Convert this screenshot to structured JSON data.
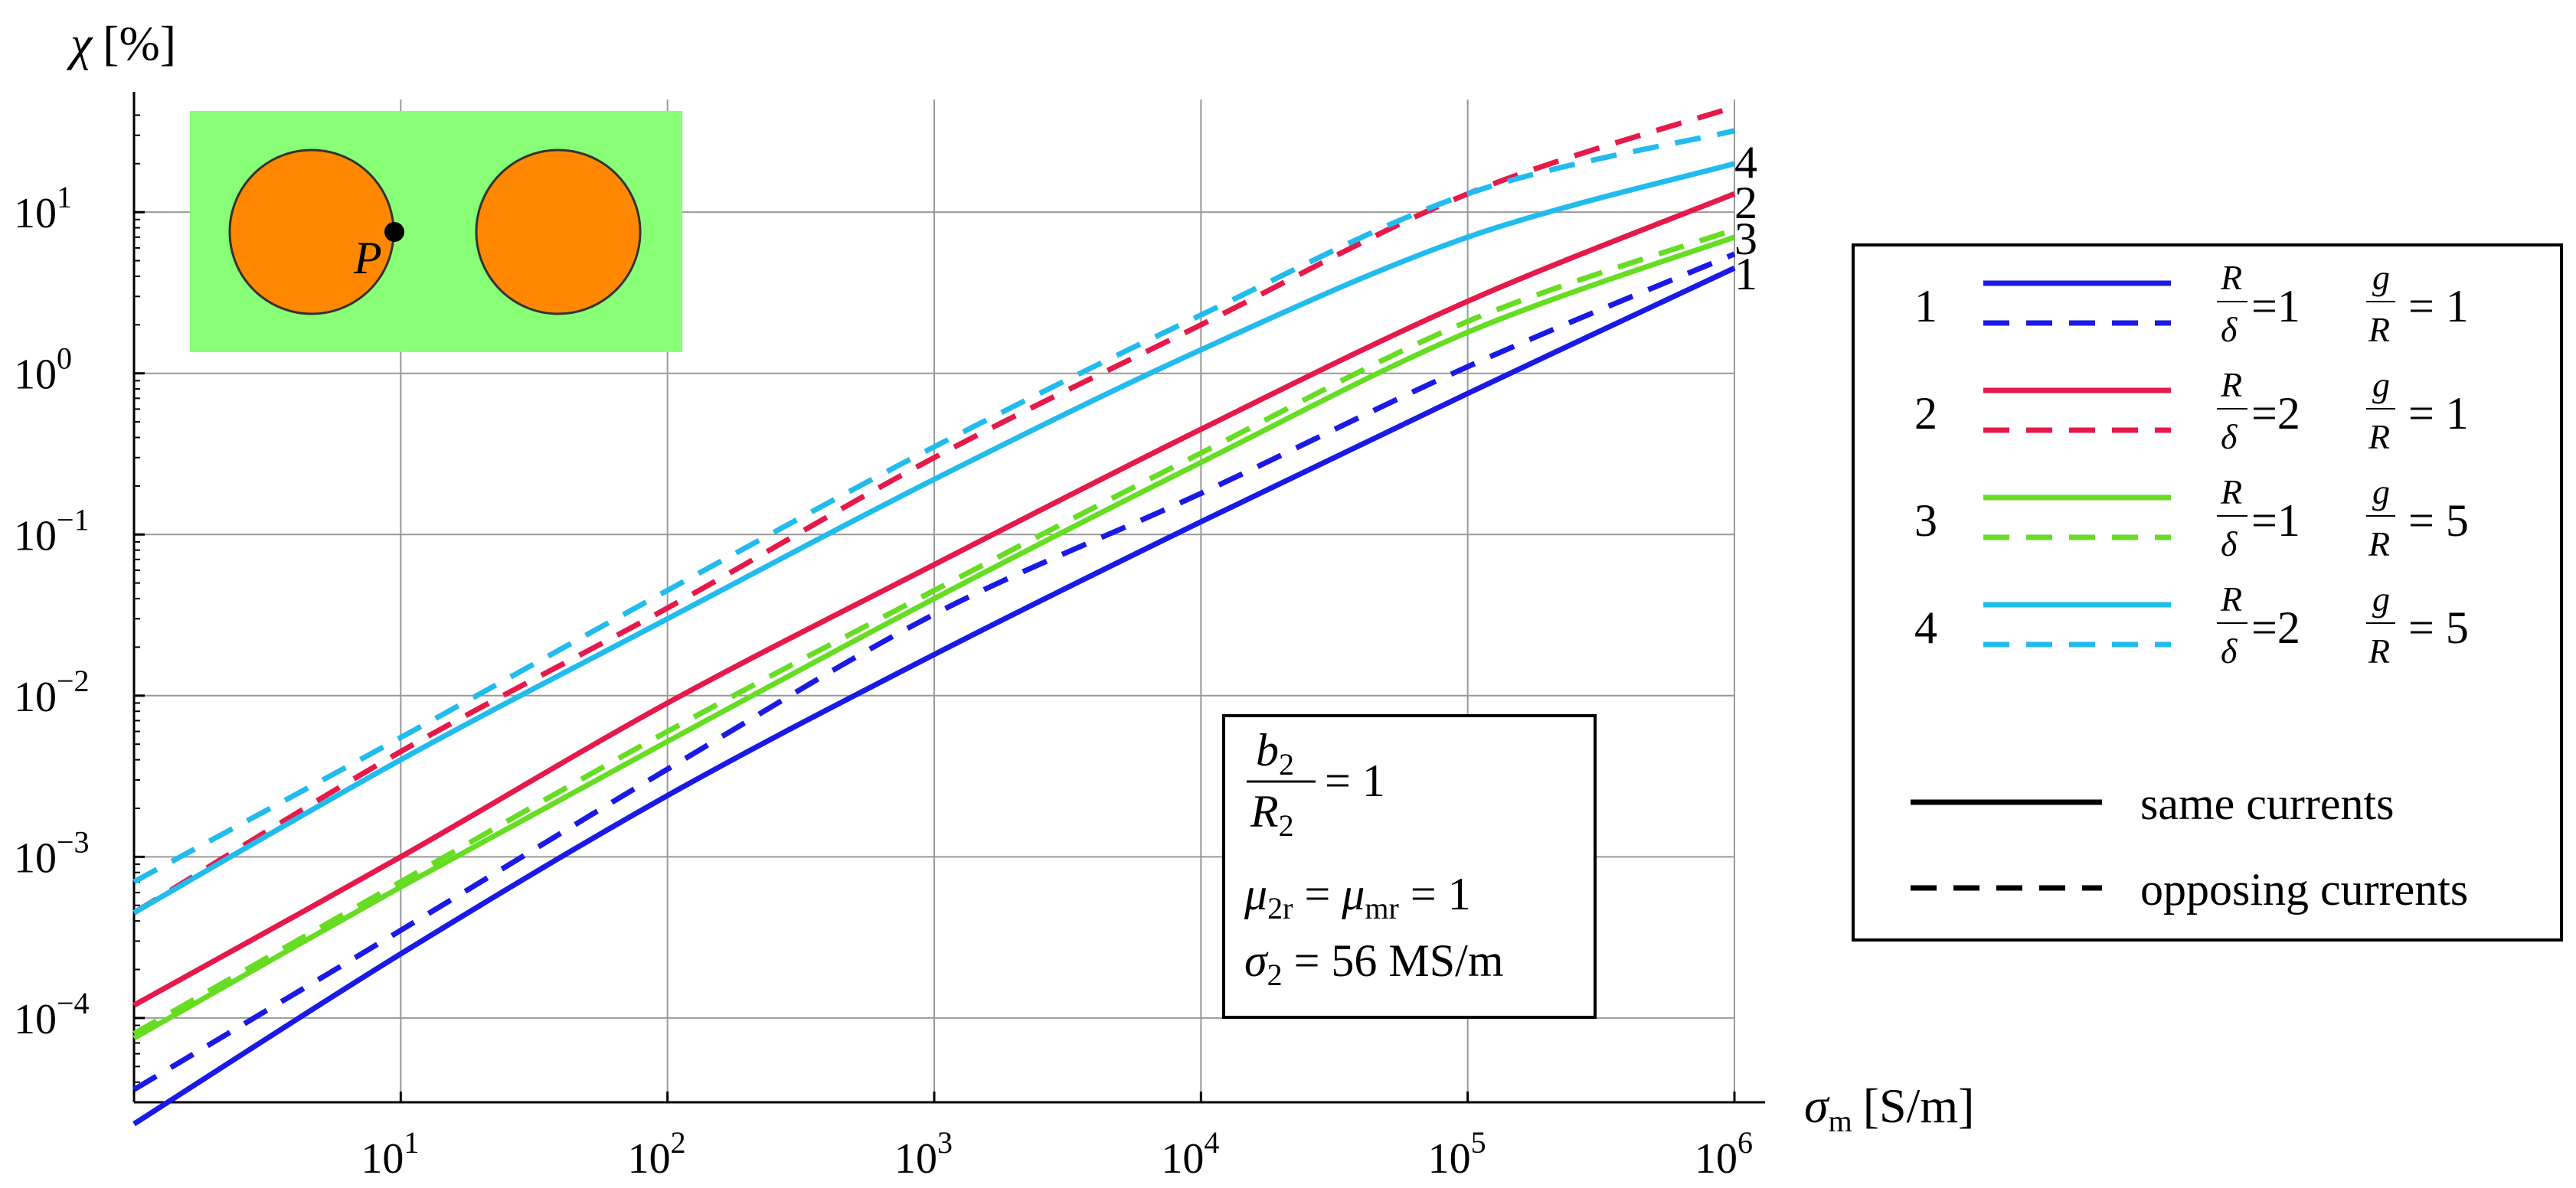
{
  "chart_data": {
    "type": "line",
    "xscale": "log",
    "yscale": "log",
    "x": [
      1,
      10,
      100,
      1000,
      10000,
      100000,
      1000000
    ],
    "xlim": [
      1,
      1000000
    ],
    "ylim": [
      3e-05,
      50
    ],
    "grid": true,
    "x_ticks": [
      10,
      100,
      1000,
      10000,
      100000,
      1000000
    ],
    "y_ticks": [
      0.0001,
      0.001,
      0.01,
      0.1,
      1,
      10
    ],
    "x_tick_labels": [
      "10",
      "10",
      "10",
      "10",
      "10",
      "10"
    ],
    "x_tick_exponents": [
      "1",
      "2",
      "3",
      "4",
      "5",
      "6"
    ],
    "y_tick_labels": [
      "10",
      "10",
      "10",
      "10",
      "10",
      "10"
    ],
    "y_tick_exponents": [
      "−4",
      "−3",
      "−2",
      "−1",
      "0",
      "1"
    ],
    "xlabel": "σ",
    "xlabel_sub": "m",
    "xlabel_unit": "[S/m]",
    "ylabel": "χ",
    "ylabel_unit": "[%]",
    "series": [
      {
        "curve": "1",
        "style": "solid",
        "color": "#1a1ae6",
        "values": [
          2.2e-05,
          0.00025,
          0.0024,
          0.018,
          0.12,
          0.75,
          4.5
        ]
      },
      {
        "curve": "1",
        "style": "dashed",
        "color": "#1a1ae6",
        "values": [
          3.6e-05,
          0.00035,
          0.0035,
          0.032,
          0.18,
          1.1,
          5.5
        ]
      },
      {
        "curve": "2",
        "style": "solid",
        "color": "#e6194b",
        "values": [
          0.00012,
          0.001,
          0.009,
          0.065,
          0.45,
          2.8,
          13
        ]
      },
      {
        "curve": "2",
        "style": "dashed",
        "color": "#e6194b",
        "values": [
          0.00045,
          0.0045,
          0.035,
          0.3,
          2,
          13,
          45
        ]
      },
      {
        "curve": "3",
        "style": "solid",
        "color": "#66dd22",
        "values": [
          7.5e-05,
          0.00065,
          0.0052,
          0.04,
          0.28,
          1.8,
          7
        ]
      },
      {
        "curve": "3",
        "style": "dashed",
        "color": "#66dd22",
        "values": [
          8e-05,
          0.0007,
          0.006,
          0.045,
          0.32,
          2.1,
          7.8
        ]
      },
      {
        "curve": "4",
        "style": "solid",
        "color": "#22bbee",
        "values": [
          0.00045,
          0.004,
          0.03,
          0.22,
          1.4,
          7,
          20
        ]
      },
      {
        "curve": "4",
        "style": "dashed",
        "color": "#22bbee",
        "values": [
          0.0007,
          0.0055,
          0.045,
          0.35,
          2.3,
          13,
          32
        ]
      }
    ],
    "curve_labels": [
      "4",
      "2",
      "3",
      "1"
    ],
    "legend": {
      "entries": [
        {
          "number": "1",
          "color": "#1a1ae6",
          "R_over_delta": "1",
          "g_over_R": "1"
        },
        {
          "number": "2",
          "color": "#e6194b",
          "R_over_delta": "2",
          "g_over_R": "1"
        },
        {
          "number": "3",
          "color": "#66dd22",
          "R_over_delta": "1",
          "g_over_R": "5"
        },
        {
          "number": "4",
          "color": "#22bbee",
          "R_over_delta": "2",
          "g_over_R": "5"
        }
      ],
      "R": "R",
      "delta": "δ",
      "g": "g",
      "eq": "=",
      "eq_spaced": "= ",
      "solid_label": "same currents",
      "dashed_label": "opposing currents",
      "placement": "right"
    },
    "annotation": {
      "b2": "b",
      "b2_sub": "2",
      "R2": "R",
      "R2_sub": "2",
      "b2_ratio_value": "= 1",
      "mu": "μ",
      "mu_2r_sub": "2r",
      "mu_mr_sub": "mr",
      "mu_eq": " = ",
      "mu_value": " = 1",
      "sigma": "σ",
      "sigma_sub": "2",
      "sigma_value": " = 56 MS/m"
    },
    "inset": {
      "point_label": "P",
      "background_color": "#88ff77",
      "conductor_color": "#ff8800"
    }
  }
}
